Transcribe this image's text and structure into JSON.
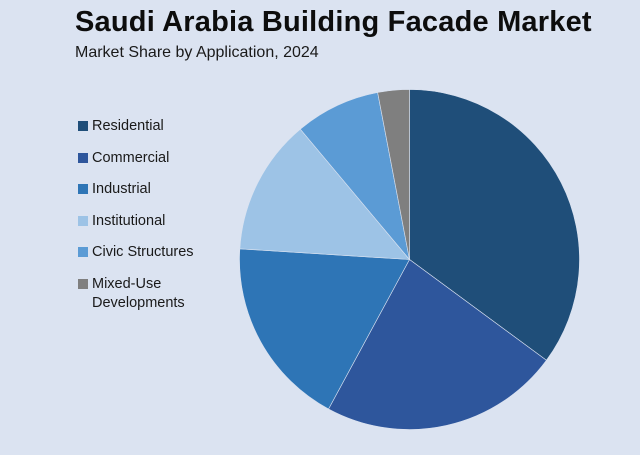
{
  "header": {
    "title": "Saudi Arabia Building Facade Market",
    "subtitle": "Market Share by Application, 2024"
  },
  "legend": {
    "items": [
      {
        "label": "Residential",
        "color": "#1f4e79"
      },
      {
        "label": "Commercial",
        "color": "#2e569c"
      },
      {
        "label": "Industrial",
        "color": "#2e75b6"
      },
      {
        "label": "Institutional",
        "color": "#9dc3e6"
      },
      {
        "label": "Civic Structures",
        "color": "#5b9bd5"
      },
      {
        "label": "Mixed-Use\nDevelopments",
        "color": "#7f7f7f"
      }
    ]
  },
  "chart_data": {
    "type": "pie",
    "title": "Saudi Arabia Building Facade Market",
    "subtitle": "Market Share by Application, 2024",
    "categories": [
      "Residential",
      "Commercial",
      "Industrial",
      "Institutional",
      "Civic Structures",
      "Mixed-Use Developments"
    ],
    "values": [
      35.1,
      22.8,
      18.1,
      12.9,
      8.1,
      3.0
    ],
    "unit": "%",
    "colors": [
      "#1f4e79",
      "#2e569c",
      "#2e75b6",
      "#9dc3e6",
      "#5b9bd5",
      "#7f7f7f"
    ],
    "start_angle_deg": 0,
    "direction": "clockwise",
    "legend_position": "left",
    "data_labels": false
  },
  "colors": {
    "background": "#dbe3f1"
  }
}
